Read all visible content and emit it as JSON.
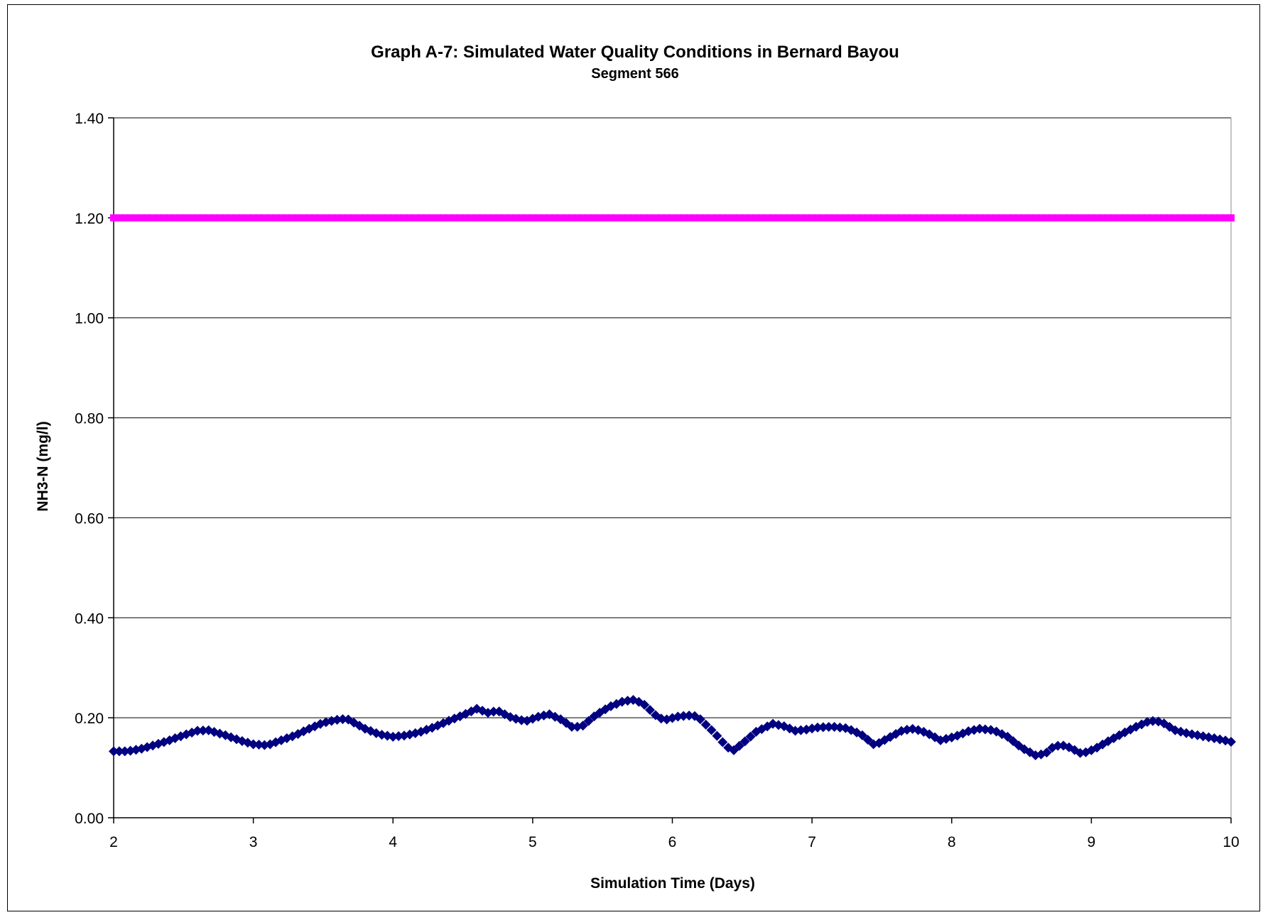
{
  "chart_data": {
    "type": "scatter",
    "title": "Graph A-7:  Simulated Water Quality Conditions in Bernard Bayou",
    "subtitle": "Segment 566",
    "xlabel": "Simulation Time (Days)",
    "ylabel": "NH3-N (mg/l)",
    "xlim": [
      2,
      10
    ],
    "ylim": [
      0,
      1.4
    ],
    "x_ticks": [
      "2",
      "3",
      "4",
      "5",
      "6",
      "7",
      "8",
      "9",
      "10"
    ],
    "y_ticks": [
      "0.00",
      "0.20",
      "0.40",
      "0.60",
      "0.80",
      "1.00",
      "1.20",
      "1.40"
    ],
    "grid": "horizontal",
    "series": [
      {
        "color": "#ff00ff",
        "marker": "square",
        "step": 0.04,
        "x_range": [
          2,
          10
        ],
        "constant_y": 1.2
      },
      {
        "color": "#000080",
        "marker": "diamond",
        "points": [
          [
            2.0,
            0.133
          ],
          [
            2.1,
            0.133
          ],
          [
            2.2,
            0.138
          ],
          [
            2.3,
            0.146
          ],
          [
            2.4,
            0.155
          ],
          [
            2.5,
            0.165
          ],
          [
            2.6,
            0.174
          ],
          [
            2.68,
            0.175
          ],
          [
            2.8,
            0.165
          ],
          [
            2.9,
            0.155
          ],
          [
            3.0,
            0.147
          ],
          [
            3.1,
            0.145
          ],
          [
            3.2,
            0.155
          ],
          [
            3.3,
            0.165
          ],
          [
            3.4,
            0.178
          ],
          [
            3.5,
            0.19
          ],
          [
            3.6,
            0.196
          ],
          [
            3.67,
            0.198
          ],
          [
            3.8,
            0.178
          ],
          [
            3.9,
            0.167
          ],
          [
            4.0,
            0.162
          ],
          [
            4.1,
            0.165
          ],
          [
            4.2,
            0.172
          ],
          [
            4.3,
            0.182
          ],
          [
            4.4,
            0.194
          ],
          [
            4.5,
            0.205
          ],
          [
            4.6,
            0.218
          ],
          [
            4.68,
            0.21
          ],
          [
            4.75,
            0.214
          ],
          [
            4.85,
            0.2
          ],
          [
            4.95,
            0.193
          ],
          [
            5.05,
            0.203
          ],
          [
            5.12,
            0.207
          ],
          [
            5.2,
            0.197
          ],
          [
            5.28,
            0.182
          ],
          [
            5.35,
            0.182
          ],
          [
            5.45,
            0.205
          ],
          [
            5.55,
            0.222
          ],
          [
            5.65,
            0.233
          ],
          [
            5.73,
            0.236
          ],
          [
            5.8,
            0.226
          ],
          [
            5.9,
            0.2
          ],
          [
            5.95,
            0.196
          ],
          [
            6.05,
            0.203
          ],
          [
            6.15,
            0.205
          ],
          [
            6.2,
            0.197
          ],
          [
            6.3,
            0.17
          ],
          [
            6.38,
            0.145
          ],
          [
            6.43,
            0.133
          ],
          [
            6.5,
            0.148
          ],
          [
            6.6,
            0.172
          ],
          [
            6.72,
            0.188
          ],
          [
            6.8,
            0.183
          ],
          [
            6.88,
            0.174
          ],
          [
            6.95,
            0.176
          ],
          [
            7.05,
            0.181
          ],
          [
            7.15,
            0.182
          ],
          [
            7.25,
            0.179
          ],
          [
            7.35,
            0.167
          ],
          [
            7.45,
            0.145
          ],
          [
            7.55,
            0.16
          ],
          [
            7.65,
            0.175
          ],
          [
            7.73,
            0.178
          ],
          [
            7.82,
            0.17
          ],
          [
            7.92,
            0.155
          ],
          [
            8.02,
            0.162
          ],
          [
            8.12,
            0.173
          ],
          [
            8.2,
            0.178
          ],
          [
            8.3,
            0.175
          ],
          [
            8.4,
            0.162
          ],
          [
            8.5,
            0.14
          ],
          [
            8.6,
            0.125
          ],
          [
            8.67,
            0.128
          ],
          [
            8.72,
            0.14
          ],
          [
            8.78,
            0.146
          ],
          [
            8.85,
            0.14
          ],
          [
            8.93,
            0.128
          ],
          [
            9.02,
            0.137
          ],
          [
            9.12,
            0.153
          ],
          [
            9.22,
            0.168
          ],
          [
            9.32,
            0.182
          ],
          [
            9.42,
            0.194
          ],
          [
            9.5,
            0.192
          ],
          [
            9.6,
            0.175
          ],
          [
            9.7,
            0.168
          ],
          [
            9.8,
            0.163
          ],
          [
            9.9,
            0.158
          ],
          [
            10.0,
            0.152
          ]
        ]
      }
    ]
  }
}
